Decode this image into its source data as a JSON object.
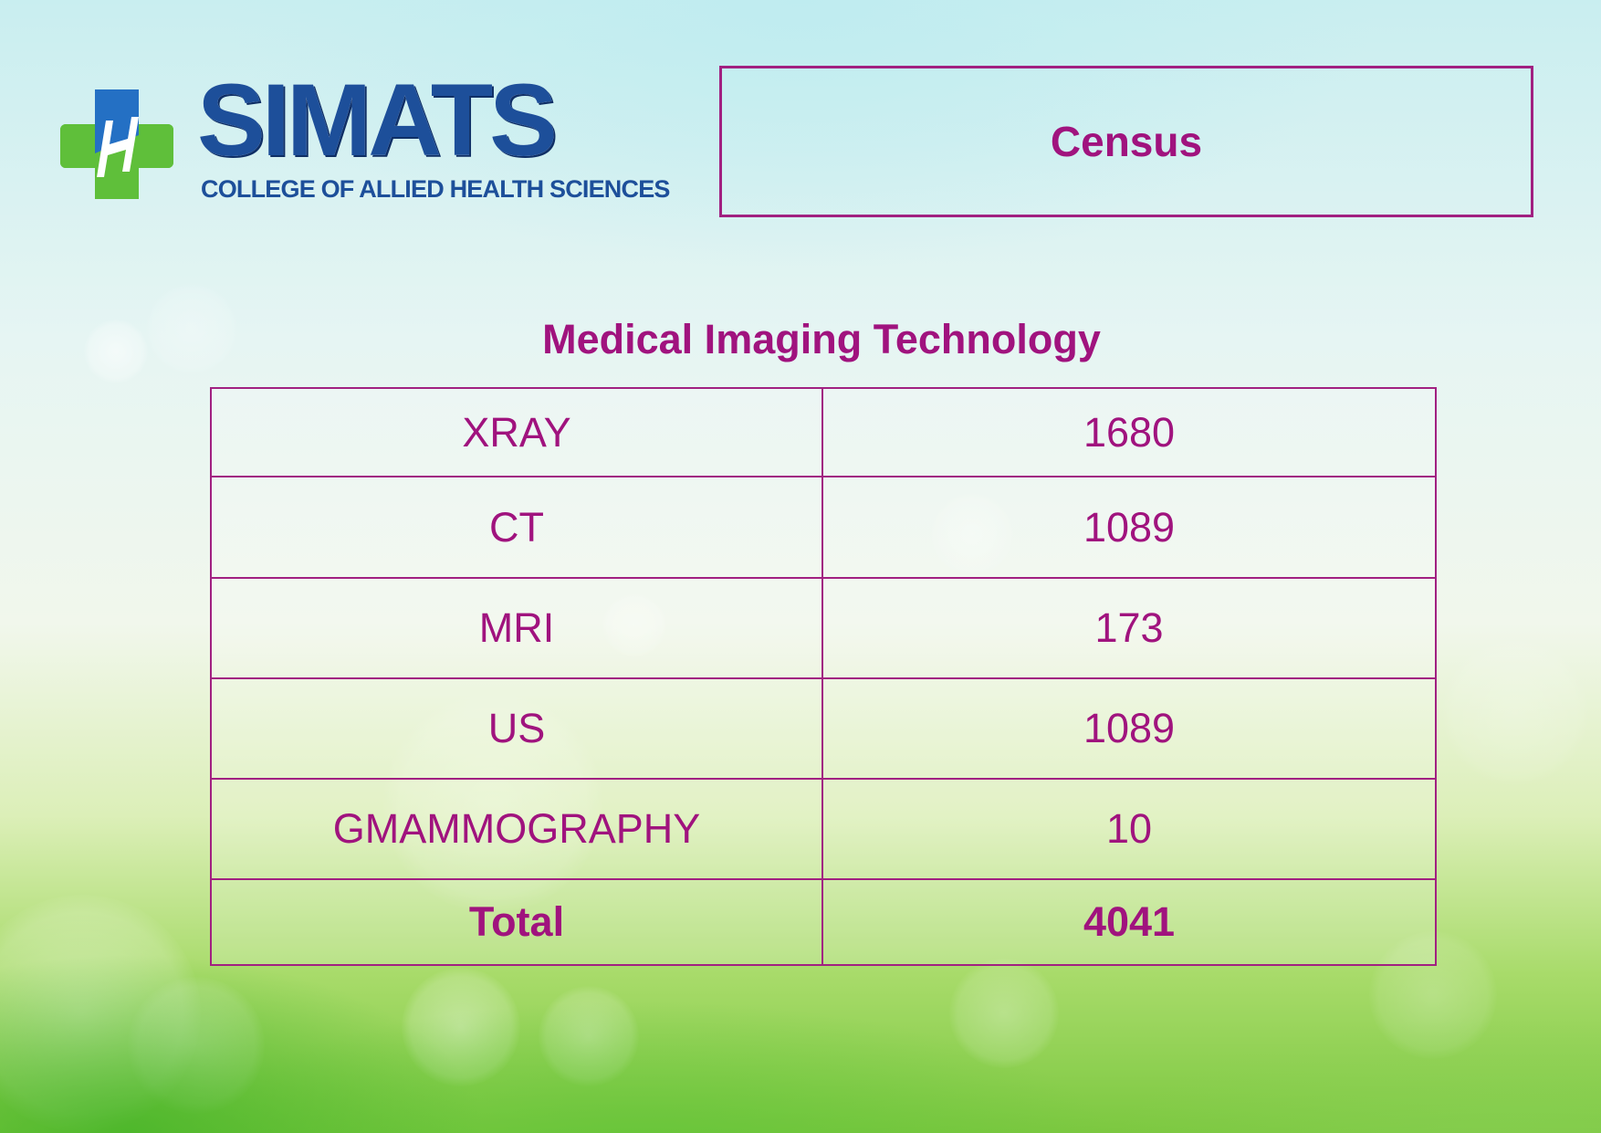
{
  "logo": {
    "name": "SIMATS",
    "subtitle": "COLLEGE OF ALLIED HEALTH SCIENCES",
    "icon": "medical-cross-icon",
    "colors": {
      "primary_blue": "#1d4f9a",
      "green": "#5fbf3a"
    }
  },
  "header": {
    "title": "Census"
  },
  "section": {
    "title": "Medical Imaging Technology"
  },
  "table": {
    "rows": [
      {
        "label": "XRAY",
        "value": "1680"
      },
      {
        "label": "CT",
        "value": "1089"
      },
      {
        "label": "MRI",
        "value": "173"
      },
      {
        "label": "US",
        "value": "1089"
      },
      {
        "label": "GMAMMOGRAPHY",
        "value": "10"
      }
    ],
    "total": {
      "label": "Total",
      "value": "4041"
    }
  },
  "colors": {
    "accent": "#a0137e",
    "border": "#a12081"
  }
}
